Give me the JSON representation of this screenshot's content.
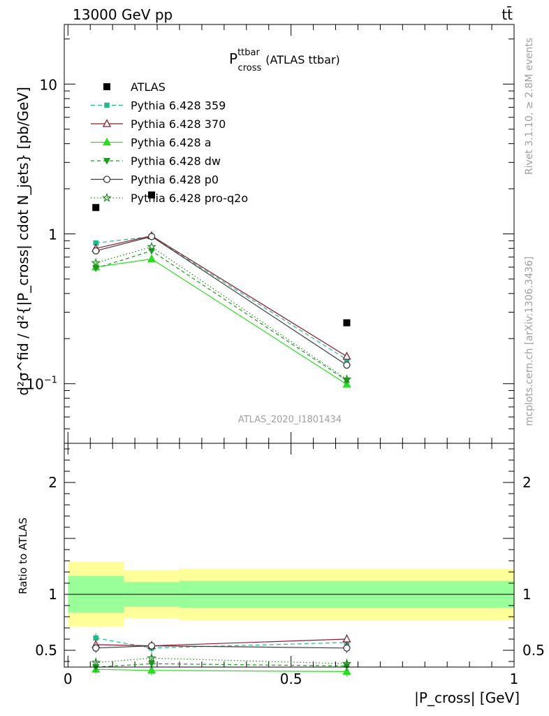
{
  "header": {
    "left": "13000 GeV pp",
    "right": "tt̄"
  },
  "side_labels": {
    "rivet": "Rivet 3.1.10, ≥ 2.8M events",
    "mcplots": "mcplots.cern.ch [arXiv:1306.3436]"
  },
  "chart_data": [
    {
      "type": "line",
      "panel": "main",
      "title": {
        "main": "P",
        "sup": "ttbar",
        "sub": "cross",
        "suffix": "(ATLAS ttbar)"
      },
      "ylabel": "d²σ^fid / d²{|P_cross| cdot N_jets} [pb/GeV]",
      "xlabel": "",
      "analysis_tag": "ATLAS_2020_I1801434",
      "y_scale": "log",
      "xlim": [
        -0.0083,
        1.0
      ],
      "ylim": [
        0.04,
        25
      ],
      "y_ticks": [
        {
          "value": 0.1,
          "label": "10",
          "exp": "−1"
        },
        {
          "value": 1,
          "label": "1",
          "exp": ""
        },
        {
          "value": 10,
          "label": "10",
          "exp": ""
        }
      ],
      "legend_position": "top-left",
      "data": {
        "name": "ATLAS",
        "x": [
          0.0625,
          0.1875,
          0.625
        ],
        "y": [
          1.5,
          1.82,
          0.255
        ],
        "rel_err_inner": [
          0.165,
          0.11,
          0.12
        ],
        "rel_err_outer": [
          0.29,
          0.215,
          0.23
        ],
        "bin_edges": [
          0.0,
          0.125,
          0.25,
          1.0
        ]
      },
      "series": [
        {
          "name": "Pythia 6.428 359",
          "color": "#1fba8c",
          "dash": "6,4",
          "marker": "square",
          "x": [
            0.0625,
            0.1875,
            0.625
          ],
          "y": [
            0.87,
            0.96,
            0.145
          ]
        },
        {
          "name": "Pythia 6.428 370",
          "color": "#8b1a2e",
          "dash": "",
          "marker": "triangle-open",
          "x": [
            0.0625,
            0.1875,
            0.625
          ],
          "y": [
            0.8,
            0.97,
            0.152
          ]
        },
        {
          "name": "Pythia 6.428 a",
          "color": "#27e01e",
          "dash": "",
          "marker": "triangle",
          "x": [
            0.0625,
            0.1875,
            0.625
          ],
          "y": [
            0.6,
            0.68,
            0.099
          ]
        },
        {
          "name": "Pythia 6.428 dw",
          "color": "#1b9a1b",
          "dash": "5,4",
          "marker": "triangle-down",
          "x": [
            0.0625,
            0.1875,
            0.625
          ],
          "y": [
            0.59,
            0.77,
            0.105
          ]
        },
        {
          "name": "Pythia 6.428 p0",
          "color": "#3c3c3c",
          "dash": "",
          "marker": "circle-open",
          "x": [
            0.0625,
            0.1875,
            0.625
          ],
          "y": [
            0.77,
            0.96,
            0.133
          ]
        },
        {
          "name": "Pythia 6.428 pro-q2o",
          "color": "#1b8c1b",
          "dash": "1.5,3",
          "marker": "star",
          "x": [
            0.0625,
            0.1875,
            0.625
          ],
          "y": [
            0.64,
            0.82,
            0.107
          ]
        }
      ]
    },
    {
      "type": "line",
      "panel": "ratio",
      "ylabel": "Ratio to ATLAS",
      "xlabel": "|P_cross| [GeV]",
      "xlim": [
        -0.0083,
        1.0
      ],
      "ylim": [
        0.35,
        2.35
      ],
      "x_ticks": [
        {
          "value": 0,
          "label": "0"
        },
        {
          "value": 0.5,
          "label": "0.5"
        },
        {
          "value": 1,
          "label": "1"
        }
      ],
      "y_ticks": [
        {
          "value": 0.5,
          "label": "0.5"
        },
        {
          "value": 1,
          "label": "1"
        },
        {
          "value": 2,
          "label": "2"
        }
      ],
      "series": [
        {
          "name": "Pythia 6.428 359",
          "x": [
            0.0625,
            0.1875,
            0.625
          ],
          "y": [
            0.61,
            0.52,
            0.57
          ]
        },
        {
          "name": "Pythia 6.428 370",
          "x": [
            0.0625,
            0.1875,
            0.625
          ],
          "y": [
            0.55,
            0.54,
            0.6
          ]
        },
        {
          "name": "Pythia 6.428 a",
          "x": [
            0.0625,
            0.1875,
            0.625
          ],
          "y": [
            0.33,
            0.32,
            0.31
          ]
        },
        {
          "name": "Pythia 6.428 dw",
          "x": [
            0.0625,
            0.1875,
            0.625
          ],
          "y": [
            0.35,
            0.38,
            0.36
          ]
        },
        {
          "name": "Pythia 6.428 p0",
          "x": [
            0.0625,
            0.1875,
            0.625
          ],
          "y": [
            0.52,
            0.54,
            0.52
          ]
        },
        {
          "name": "Pythia 6.428 pro-q2o",
          "x": [
            0.0625,
            0.1875,
            0.625
          ],
          "y": [
            0.39,
            0.43,
            0.38
          ]
        }
      ]
    }
  ]
}
